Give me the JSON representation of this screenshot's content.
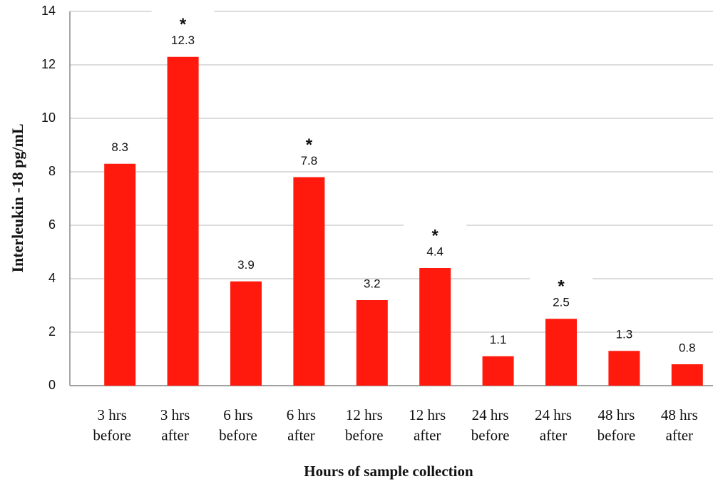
{
  "chart_data": {
    "type": "bar",
    "y_label": "Interleukin -18 pg/mL",
    "x_label": "Hours of sample collection",
    "categories": [
      "3 hrs\nbefore",
      "3 hrs\nafter",
      "6 hrs\nbefore",
      "6 hrs\nafter",
      "12 hrs\nbefore",
      "12 hrs\nafter",
      "24 hrs\nbefore",
      "24 hrs\nafter",
      "48 hrs\nbefore",
      "48 hrs\nafter"
    ],
    "values": [
      8.3,
      12.3,
      3.9,
      7.8,
      3.2,
      4.4,
      1.1,
      2.5,
      1.3,
      0.8
    ],
    "significance": [
      null,
      "*",
      null,
      "*",
      null,
      "*",
      null,
      "*",
      null,
      null
    ],
    "color": "#ff1a0d",
    "ylim": [
      0,
      14
    ],
    "yticks": [
      0,
      2,
      4,
      6,
      8,
      10,
      12,
      14
    ],
    "grid": true
  }
}
